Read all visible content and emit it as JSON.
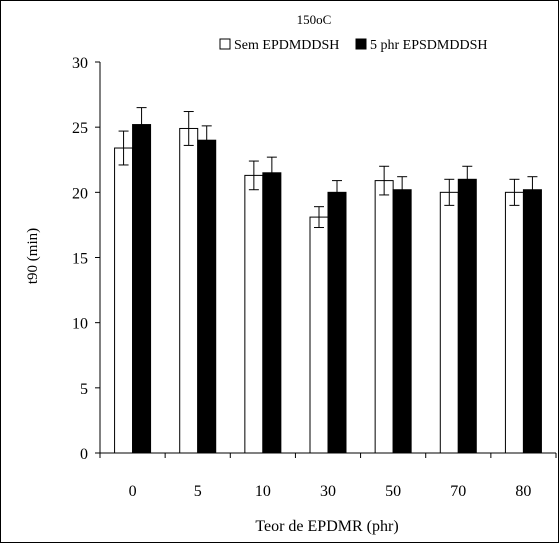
{
  "chart_data": {
    "type": "bar",
    "title": "150oC",
    "xlabel": "Teor de EPDMR (phr)",
    "ylabel": "t90 (min)",
    "categories": [
      "0",
      "5",
      "10",
      "30",
      "50",
      "70",
      "80"
    ],
    "ylim": [
      0,
      30
    ],
    "yticks": [
      "0",
      "5",
      "10",
      "15",
      "20",
      "25",
      "30"
    ],
    "grid": false,
    "legend_position": "top",
    "series": [
      {
        "name": "Sem EPDMDDSH",
        "fill": "#ffffff",
        "values": [
          23.4,
          24.9,
          21.3,
          18.1,
          20.9,
          20.0,
          20.0
        ],
        "errors": [
          1.3,
          1.3,
          1.1,
          0.8,
          1.1,
          1.0,
          1.0
        ]
      },
      {
        "name": "5 phr  EPSDMDDSH",
        "fill": "#000000",
        "values": [
          25.2,
          24.0,
          21.5,
          20.0,
          20.2,
          21.0,
          20.2
        ],
        "errors": [
          1.3,
          1.1,
          1.2,
          0.9,
          1.0,
          1.0,
          1.0
        ]
      }
    ]
  }
}
